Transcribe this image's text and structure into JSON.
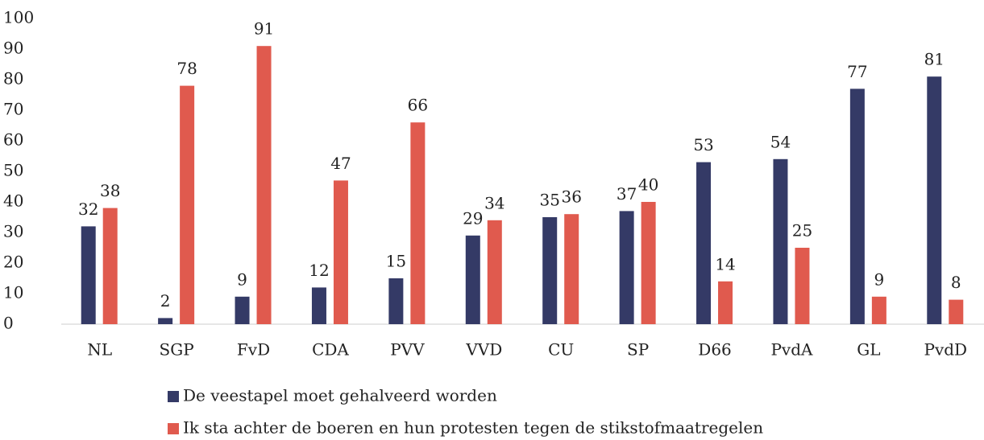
{
  "chart_data": {
    "type": "bar",
    "categories": [
      "NL",
      "SGP",
      "FvD",
      "CDA",
      "PVV",
      "VVD",
      "CU",
      "SP",
      "D66",
      "PvdA",
      "GL",
      "PvdD"
    ],
    "series": [
      {
        "name": "De veestapel moet gehalveerd worden",
        "color": "#343a66",
        "values": [
          32,
          2,
          9,
          12,
          15,
          29,
          35,
          37,
          53,
          54,
          77,
          81
        ]
      },
      {
        "name": "Ik sta achter de boeren en hun protesten tegen de stikstofmaatregelen",
        "color": "#e05a4e",
        "values": [
          38,
          78,
          91,
          47,
          66,
          34,
          36,
          40,
          14,
          25,
          9,
          8
        ]
      }
    ],
    "ylim": [
      0,
      100
    ],
    "yticks": [
      0,
      10,
      20,
      30,
      40,
      50,
      60,
      70,
      80,
      90,
      100
    ],
    "grid": false,
    "legend": "bottom"
  }
}
